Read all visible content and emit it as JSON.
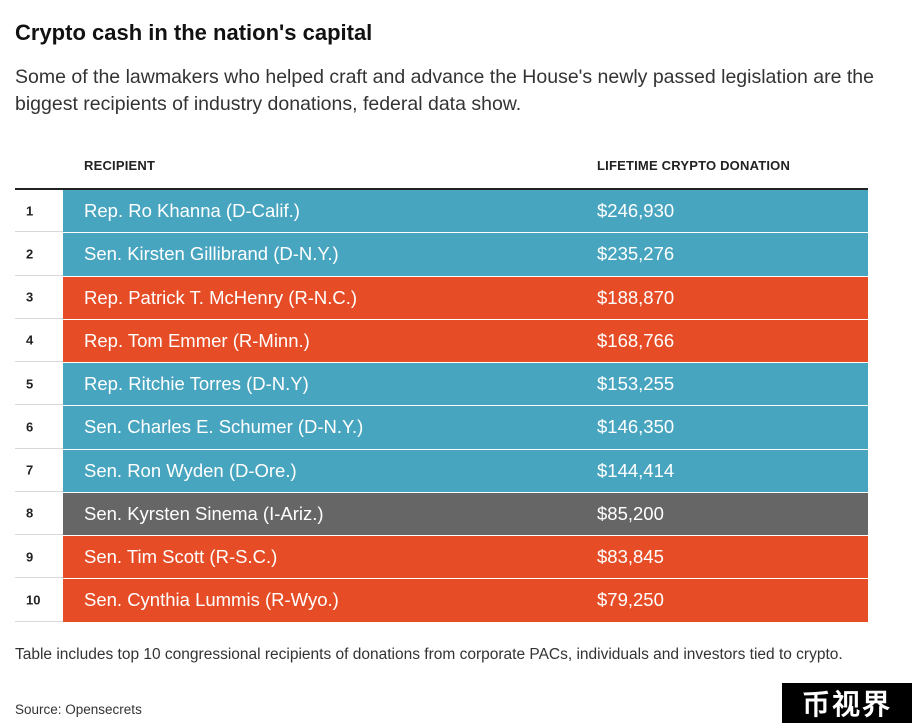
{
  "header": {
    "title": "Crypto cash in the nation's capital",
    "subtitle": "Some of the lawmakers who helped craft and advance the House's newly passed legislation are the biggest recipients of industry donations, federal data show."
  },
  "chart_data": {
    "type": "table",
    "columns": [
      "RECIPIENT",
      "LIFETIME CRYPTO DONATION"
    ],
    "rows": [
      {
        "rank": "1",
        "recipient": "Rep. Ro Khanna (D-Calif.)",
        "donation": "$246,930",
        "value": 246930,
        "party": "D"
      },
      {
        "rank": "2",
        "recipient": "Sen. Kirsten Gillibrand (D-N.Y.)",
        "donation": "$235,276",
        "value": 235276,
        "party": "D"
      },
      {
        "rank": "3",
        "recipient": "Rep. Patrick T. McHenry (R-N.C.)",
        "donation": "$188,870",
        "value": 188870,
        "party": "R"
      },
      {
        "rank": "4",
        "recipient": "Rep. Tom Emmer (R-Minn.)",
        "donation": "$168,766",
        "value": 168766,
        "party": "R"
      },
      {
        "rank": "5",
        "recipient": "Rep. Ritchie Torres (D-N.Y)",
        "donation": "$153,255",
        "value": 153255,
        "party": "D"
      },
      {
        "rank": "6",
        "recipient": "Sen. Charles E. Schumer (D-N.Y.)",
        "donation": "$146,350",
        "value": 146350,
        "party": "D"
      },
      {
        "rank": "7",
        "recipient": "Sen. Ron Wyden (D-Ore.)",
        "donation": "$144,414",
        "value": 144414,
        "party": "D"
      },
      {
        "rank": "8",
        "recipient": "Sen. Kyrsten Sinema (I-Ariz.)",
        "donation": "$85,200",
        "value": 85200,
        "party": "I"
      },
      {
        "rank": "9",
        "recipient": "Sen. Tim Scott (R-S.C.)",
        "donation": "$83,845",
        "value": 83845,
        "party": "R"
      },
      {
        "rank": "10",
        "recipient": "Sen. Cynthia Lummis (R-Wyo.)",
        "donation": "$79,250",
        "value": 79250,
        "party": "R"
      }
    ]
  },
  "colors": {
    "D": "#48a5c0",
    "R": "#e64d26",
    "I": "#666666"
  },
  "footer": {
    "note": "Table includes top 10 congressional recipients of donations from corporate PACs, individuals and investors tied to crypto.",
    "source": "Source: Opensecrets"
  },
  "watermark": {
    "text": "币视界"
  }
}
